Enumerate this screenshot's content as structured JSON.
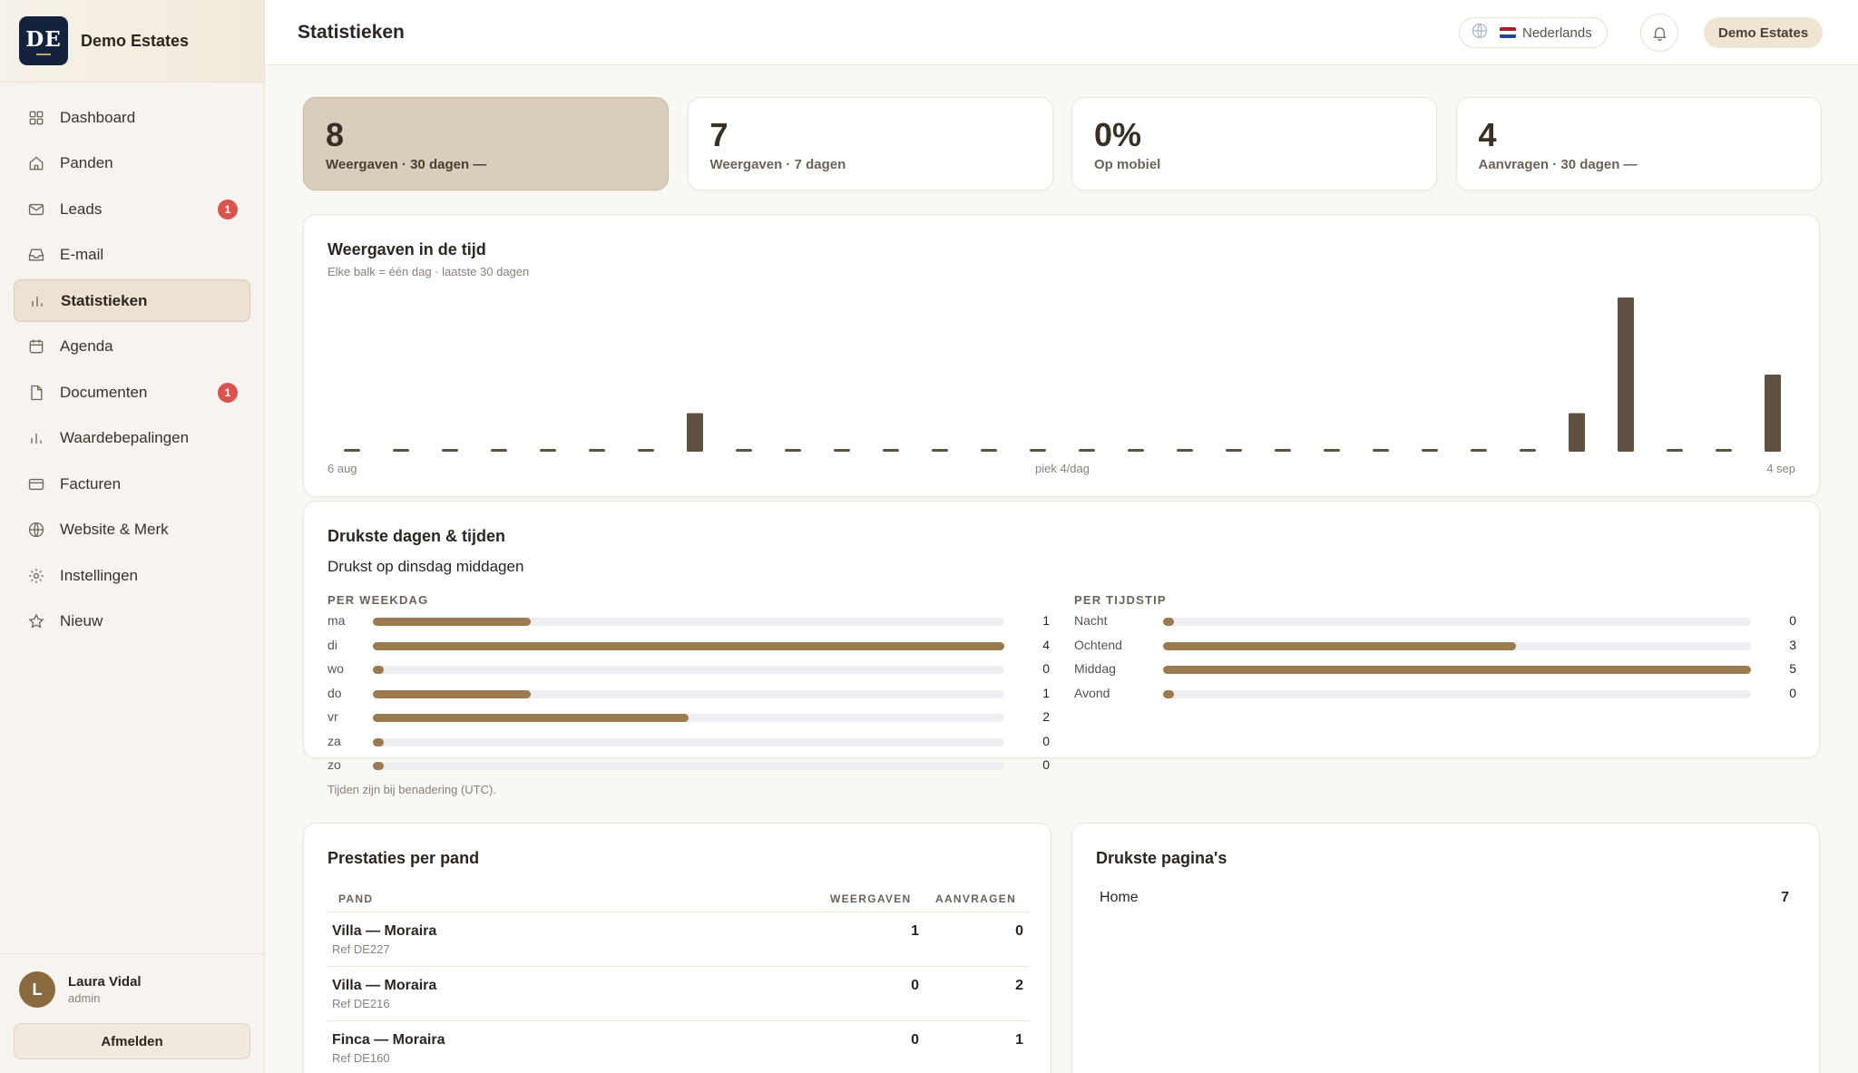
{
  "brand": {
    "logo_text": "DE",
    "name": "Demo Estates"
  },
  "sidebar": {
    "items": [
      {
        "label": "Dashboard",
        "icon": "grid-icon",
        "active": false,
        "badge": null
      },
      {
        "label": "Panden",
        "icon": "home-icon",
        "active": false,
        "badge": null
      },
      {
        "label": "Leads",
        "icon": "mail-icon",
        "active": false,
        "badge": "1"
      },
      {
        "label": "E-mail",
        "icon": "inbox-icon",
        "active": false,
        "badge": null
      },
      {
        "label": "Statistieken",
        "icon": "bar-chart-icon",
        "active": true,
        "badge": null
      },
      {
        "label": "Agenda",
        "icon": "calendar-icon",
        "active": false,
        "badge": null
      },
      {
        "label": "Documenten",
        "icon": "document-icon",
        "active": false,
        "badge": "1"
      },
      {
        "label": "Waardebepalingen",
        "icon": "bar-chart-icon",
        "active": false,
        "badge": null
      },
      {
        "label": "Facturen",
        "icon": "credit-card-icon",
        "active": false,
        "badge": null
      },
      {
        "label": "Website & Merk",
        "icon": "globe-icon",
        "active": false,
        "badge": null
      },
      {
        "label": "Instellingen",
        "icon": "gear-icon",
        "active": false,
        "badge": null
      },
      {
        "label": "Nieuw",
        "icon": "star-icon",
        "active": false,
        "badge": null
      }
    ]
  },
  "user": {
    "initial": "L",
    "name": "Laura Vidal",
    "role": "admin",
    "logout_label": "Afmelden"
  },
  "header": {
    "title": "Statistieken",
    "language": "Nederlands",
    "org": "Demo Estates"
  },
  "colors": {
    "accent": "#9a7a4e",
    "bar": "#5f5142",
    "badge": "#d9534f",
    "active_kpi": "#d9cdbb"
  },
  "kpis": [
    {
      "value": "8",
      "label": "Weergaven · 30 dagen —",
      "active": true
    },
    {
      "value": "7",
      "label": "Weergaven · 7 dagen",
      "active": false
    },
    {
      "value": "0%",
      "label": "Op mobiel",
      "active": false
    },
    {
      "value": "4",
      "label": "Aanvragen · 30 dagen —",
      "active": false
    }
  ],
  "views_chart": {
    "title": "Weergaven in de tijd",
    "subtitle": "Elke balk = één dag · laatste 30 dagen",
    "start_label": "6 aug",
    "peak_label": "piek 4/dag",
    "end_label": "4 sep"
  },
  "chart_data": {
    "type": "bar",
    "values": [
      0,
      0,
      0,
      0,
      0,
      0,
      0,
      1,
      0,
      0,
      0,
      0,
      0,
      0,
      0,
      0,
      0,
      0,
      0,
      0,
      0,
      0,
      0,
      0,
      0,
      1,
      4,
      0,
      0,
      2
    ],
    "ylim": [
      0,
      4
    ],
    "grid": false,
    "legend": "none"
  },
  "busy": {
    "title": "Drukste dagen & tijden",
    "headline": "Drukst op dinsdag middagen",
    "weekday_label": "PER WEEKDAG",
    "time_label": "PER TIJDSTIP",
    "weekdays": [
      {
        "label": "ma",
        "value": 1
      },
      {
        "label": "di",
        "value": 4
      },
      {
        "label": "wo",
        "value": 0
      },
      {
        "label": "do",
        "value": 1
      },
      {
        "label": "vr",
        "value": 2
      },
      {
        "label": "za",
        "value": 0
      },
      {
        "label": "zo",
        "value": 0
      }
    ],
    "weekday_max": 4,
    "times": [
      {
        "label": "Nacht",
        "value": 0
      },
      {
        "label": "Ochtend",
        "value": 3
      },
      {
        "label": "Middag",
        "value": 5
      },
      {
        "label": "Avond",
        "value": 0
      }
    ],
    "time_max": 5,
    "note": "Tijden zijn bij benadering (UTC)."
  },
  "property_table": {
    "title": "Prestaties per pand",
    "col_property": "PAND",
    "col_views": "WEERGAVEN",
    "col_requests": "AANVRAGEN",
    "rows": [
      {
        "name": "Villa — Moraira",
        "ref": "Ref DE227",
        "views": "1",
        "requests": "0"
      },
      {
        "name": "Villa — Moraira",
        "ref": "Ref DE216",
        "views": "0",
        "requests": "2"
      },
      {
        "name": "Finca — Moraira",
        "ref": "Ref DE160",
        "views": "0",
        "requests": "1"
      }
    ]
  },
  "top_pages": {
    "title": "Drukste pagina's",
    "rows": [
      {
        "name": "Home",
        "views": "7"
      }
    ]
  }
}
